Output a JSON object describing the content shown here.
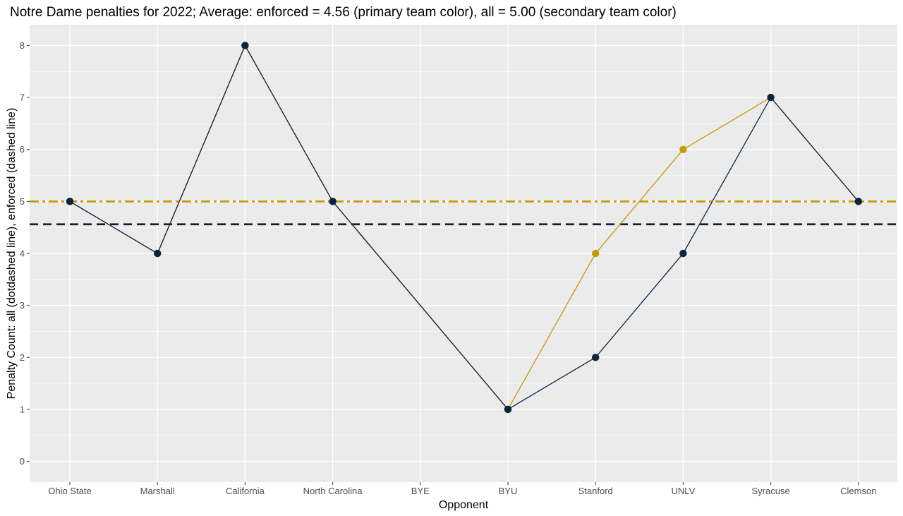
{
  "chart_data": {
    "type": "line",
    "title": "Notre Dame penalties for 2022; Average: enforced = 4.56 (primary team color), all = 5.00 (secondary team color)",
    "xlabel": "Opponent",
    "ylabel": "Penalty Count: all (dotdashed line), enforced (dashed line)",
    "categories": [
      "Ohio State",
      "Marshall",
      "California",
      "North Carolina",
      "BYE",
      "BYU",
      "Stanford",
      "UNLV",
      "Syracuse",
      "Clemson"
    ],
    "y_ticks": [
      0,
      1,
      2,
      3,
      4,
      5,
      6,
      7,
      8
    ],
    "ylim": [
      -0.4,
      8.4
    ],
    "grid": true,
    "legend": "none",
    "series": [
      {
        "key": "all",
        "values": [
          5,
          4,
          8,
          5,
          null,
          1,
          4,
          6,
          7,
          5
        ],
        "color": "#C99700"
      },
      {
        "key": "enforced",
        "values": [
          5,
          4,
          8,
          5,
          null,
          1,
          2,
          4,
          7,
          5
        ],
        "color": "#0C2340"
      }
    ],
    "reference_lines": [
      {
        "key": "all-average",
        "value": 5.0,
        "color": "#C99700",
        "style": "dotdash"
      },
      {
        "key": "enforced-average",
        "value": 4.56,
        "color": "#0C2340",
        "style": "dash"
      }
    ],
    "panel_background": "#EBEBEB",
    "grid_color": "#FFFFFF"
  }
}
